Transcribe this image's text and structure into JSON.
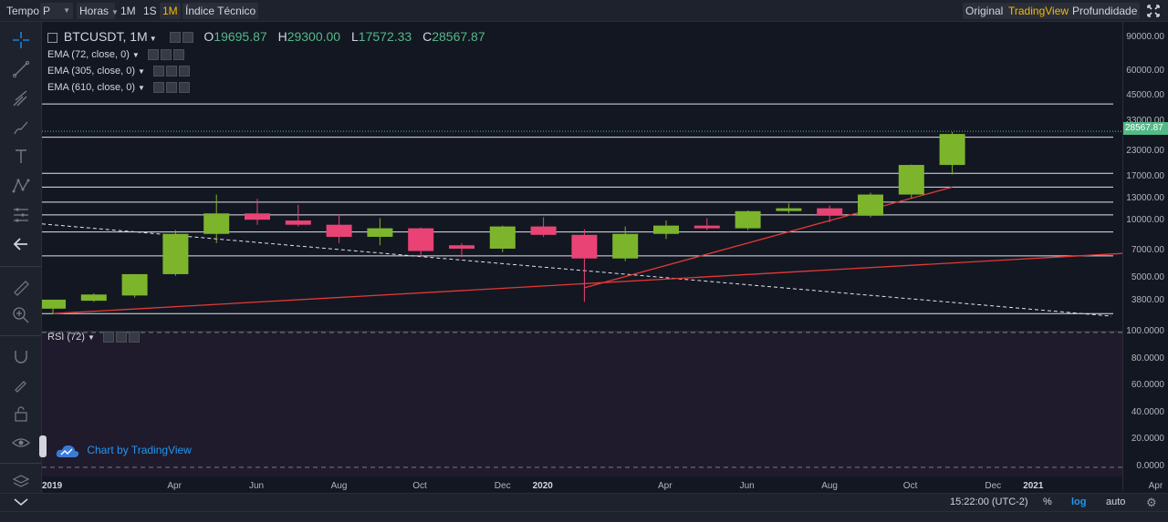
{
  "topbar": {
    "tempo_label": "Tempo",
    "period_value": "P",
    "horas_label": "Horas",
    "intervals": [
      "1M",
      "1S",
      "1M"
    ],
    "active_interval_index": 2,
    "indicator_label": "Índice Técnico",
    "views": [
      "Original",
      "TradingView",
      "Profundidade"
    ],
    "active_view_index": 1
  },
  "legend": {
    "symbol": "BTCUSDT, 1M",
    "open_label": "O",
    "open": "19695.87",
    "high_label": "H",
    "high": "29300.00",
    "low_label": "L",
    "low": "17572.33",
    "close_label": "C",
    "close": "28567.87",
    "ema1": "EMA (72, close, 0)",
    "ema2": "EMA (305, close, 0)",
    "ema3": "EMA (610, close, 0)",
    "rsi": "RSI (72)"
  },
  "price_axis": {
    "labels": [
      "90000.00",
      "60000.00",
      "45000.00",
      "33000.00",
      "23000.00",
      "17000.00",
      "13000.00",
      "10000.00",
      "7000.00",
      "5000.00",
      "3800.00"
    ],
    "current_price": "28567.87",
    "rsi_labels": [
      "100.0000",
      "80.0000",
      "60.0000",
      "40.0000",
      "20.0000",
      "0.0000"
    ]
  },
  "time_axis": {
    "labels": [
      "2019",
      "Apr",
      "Jun",
      "Aug",
      "Oct",
      "Dec",
      "2020",
      "Apr",
      "Jun",
      "Aug",
      "Oct",
      "Dec",
      "2021",
      "Apr"
    ]
  },
  "bottombar": {
    "time": "15:22:00 (UTC-2)",
    "percent": "%",
    "log": "log",
    "auto": "auto"
  },
  "watermark": "Chart by TradingView",
  "colors": {
    "up": "#7cb52c",
    "down": "#e94375",
    "accent": "#f0b90b",
    "trendline": "#e53935"
  },
  "chart_data": {
    "type": "candlestick",
    "symbol": "BTCUSDT",
    "interval": "1M",
    "scale": "log",
    "ylim": [
      2900,
      110000
    ],
    "candles": [
      {
        "month": "2019-01",
        "o": 3500,
        "h": 3900,
        "l": 3300,
        "c": 3900
      },
      {
        "month": "2019-02",
        "o": 3850,
        "h": 4200,
        "l": 3800,
        "c": 4150
      },
      {
        "month": "2019-03",
        "o": 4100,
        "h": 5300,
        "l": 4000,
        "c": 5300
      },
      {
        "month": "2019-04",
        "o": 5300,
        "h": 9000,
        "l": 5200,
        "c": 8600
      },
      {
        "month": "2019-05",
        "o": 8600,
        "h": 13800,
        "l": 7700,
        "c": 11000
      },
      {
        "month": "2019-06",
        "o": 11000,
        "h": 13100,
        "l": 9600,
        "c": 10200
      },
      {
        "month": "2019-07",
        "o": 10100,
        "h": 12200,
        "l": 9400,
        "c": 9600
      },
      {
        "month": "2019-08",
        "o": 9600,
        "h": 10900,
        "l": 7700,
        "c": 8300
      },
      {
        "month": "2019-09",
        "o": 8300,
        "h": 10400,
        "l": 7500,
        "c": 9200
      },
      {
        "month": "2019-10",
        "o": 9200,
        "h": 9300,
        "l": 6500,
        "c": 7000
      },
      {
        "month": "2019-11",
        "o": 7500,
        "h": 7700,
        "l": 6500,
        "c": 7200
      },
      {
        "month": "2019-12",
        "o": 7200,
        "h": 9500,
        "l": 6900,
        "c": 9400
      },
      {
        "month": "2020-01",
        "o": 9400,
        "h": 10500,
        "l": 8300,
        "c": 8500
      },
      {
        "month": "2020-02",
        "o": 8500,
        "h": 9100,
        "l": 3800,
        "c": 6400
      },
      {
        "month": "2020-03",
        "o": 6400,
        "h": 9400,
        "l": 6200,
        "c": 8600
      },
      {
        "month": "2020-04",
        "o": 8600,
        "h": 10100,
        "l": 8100,
        "c": 9500
      },
      {
        "month": "2020-05",
        "o": 9500,
        "h": 10400,
        "l": 9000,
        "c": 9300
      },
      {
        "month": "2020-06",
        "o": 9200,
        "h": 11400,
        "l": 9000,
        "c": 11300
      },
      {
        "month": "2020-07",
        "o": 11600,
        "h": 12400,
        "l": 11000,
        "c": 11700
      },
      {
        "month": "2020-08",
        "o": 11700,
        "h": 12100,
        "l": 9900,
        "c": 10700
      },
      {
        "month": "2020-09",
        "o": 10700,
        "h": 14100,
        "l": 10500,
        "c": 13800
      },
      {
        "month": "2020-10",
        "o": 13800,
        "h": 19800,
        "l": 13200,
        "c": 19700
      },
      {
        "month": "2020-11",
        "o": 19695.87,
        "h": 29300,
        "l": 17572.33,
        "c": 28567.87
      }
    ],
    "horizontal_levels": [
      41000,
      27500,
      17800,
      15100,
      12600,
      10800,
      8800,
      6600,
      3300
    ],
    "rsi_range": [
      0,
      100
    ]
  }
}
